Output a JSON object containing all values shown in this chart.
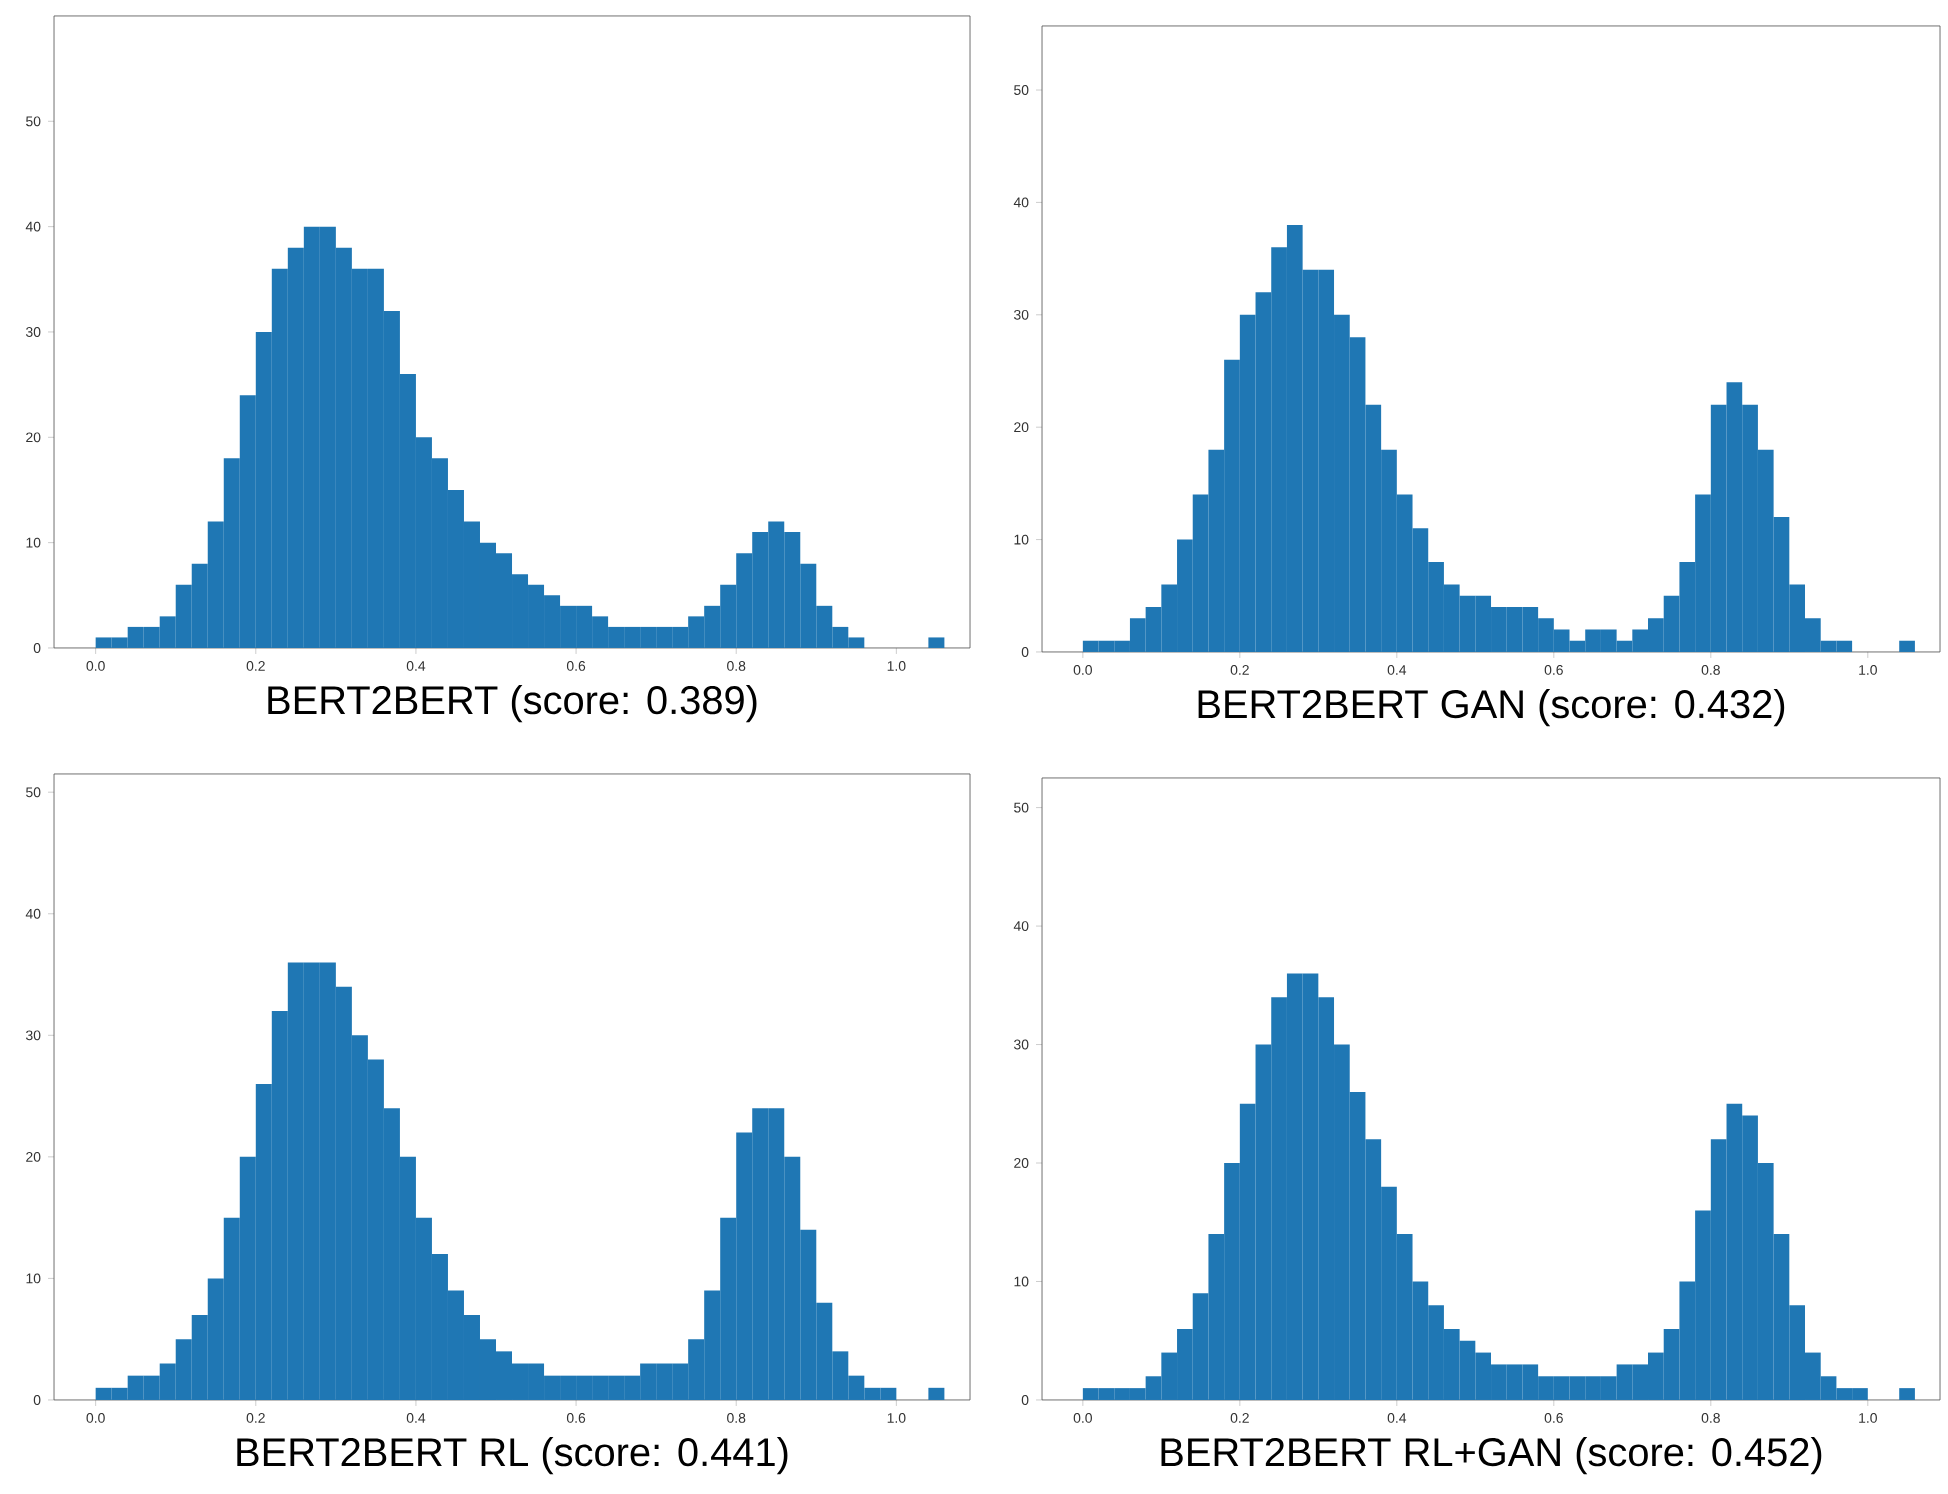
{
  "chart_data": [
    {
      "type": "histogram",
      "title": "BERT2BERT (score: 0.389)",
      "color": "#1f77b4",
      "xlim": [
        -0.052,
        1.092
      ],
      "ylim": [
        0,
        60
      ],
      "xticks": [
        {
          "value": 0,
          "label": "0.0"
        },
        {
          "value": 0.2,
          "label": "0.2"
        },
        {
          "value": 0.4,
          "label": "0.4"
        },
        {
          "value": 0.6,
          "label": "0.6"
        },
        {
          "value": 0.8,
          "label": "0.8"
        },
        {
          "value": 1,
          "label": "1.0"
        }
      ],
      "yticks": [
        0,
        10,
        20,
        30,
        40,
        50
      ],
      "bins": [
        0,
        0.02,
        0.04,
        0.06,
        0.08,
        0.1,
        0.12,
        0.14,
        0.16,
        0.18,
        0.2,
        0.22,
        0.24,
        0.26,
        0.28,
        0.3,
        0.32,
        0.34,
        0.36,
        0.38,
        0.4,
        0.42,
        0.44,
        0.46,
        0.48,
        0.5,
        0.52,
        0.54,
        0.56,
        0.58,
        0.6,
        0.62,
        0.64,
        0.66,
        0.68,
        0.7,
        0.72,
        0.74,
        0.76,
        0.78,
        0.8,
        0.82,
        0.84,
        0.86,
        0.88,
        0.9,
        0.92,
        0.94,
        0.96,
        0.98,
        1.0,
        1.02,
        1.04,
        1.06
      ],
      "values": [
        1,
        1,
        2,
        2,
        3,
        6,
        8,
        12,
        18,
        24,
        30,
        36,
        38,
        40,
        40,
        38,
        36,
        36,
        32,
        26,
        20,
        18,
        15,
        12,
        10,
        9,
        7,
        6,
        5,
        4,
        4,
        3,
        2,
        2,
        2,
        2,
        2,
        3,
        4,
        6,
        9,
        11,
        12,
        11,
        8,
        4,
        2,
        1,
        0,
        0,
        0,
        0,
        1
      ]
    },
    {
      "type": "histogram",
      "title": "BERT2BERT GAN (score: 0.432)",
      "color": "#1f77b4",
      "xlim": [
        -0.052,
        1.092
      ],
      "ylim": [
        0,
        55.7
      ],
      "xticks": [
        {
          "value": 0,
          "label": "0.0"
        },
        {
          "value": 0.2,
          "label": "0.2"
        },
        {
          "value": 0.4,
          "label": "0.4"
        },
        {
          "value": 0.6,
          "label": "0.6"
        },
        {
          "value": 0.8,
          "label": "0.8"
        },
        {
          "value": 1,
          "label": "1.0"
        }
      ],
      "yticks": [
        0,
        10,
        20,
        30,
        40,
        50
      ],
      "bins": [
        0,
        0.02,
        0.04,
        0.06,
        0.08,
        0.1,
        0.12,
        0.14,
        0.16,
        0.18,
        0.2,
        0.22,
        0.24,
        0.26,
        0.28,
        0.3,
        0.32,
        0.34,
        0.36,
        0.38,
        0.4,
        0.42,
        0.44,
        0.46,
        0.48,
        0.5,
        0.52,
        0.54,
        0.56,
        0.58,
        0.6,
        0.62,
        0.64,
        0.66,
        0.68,
        0.7,
        0.72,
        0.74,
        0.76,
        0.78,
        0.8,
        0.82,
        0.84,
        0.86,
        0.88,
        0.9,
        0.92,
        0.94,
        0.96,
        0.98,
        1.0,
        1.02,
        1.04,
        1.06
      ],
      "values": [
        1,
        1,
        1,
        3,
        4,
        6,
        10,
        14,
        18,
        26,
        30,
        32,
        36,
        38,
        34,
        34,
        30,
        28,
        22,
        18,
        14,
        11,
        8,
        6,
        5,
        5,
        4,
        4,
        4,
        3,
        2,
        1,
        2,
        2,
        1,
        2,
        3,
        5,
        8,
        14,
        22,
        24,
        22,
        18,
        12,
        6,
        3,
        1,
        1,
        0,
        0,
        0,
        1
      ]
    },
    {
      "type": "histogram",
      "title": "BERT2BERT RL (score: 0.441)",
      "color": "#1f77b4",
      "xlim": [
        -0.052,
        1.092
      ],
      "ylim": [
        0,
        51.5
      ],
      "xticks": [
        {
          "value": 0,
          "label": "0.0"
        },
        {
          "value": 0.2,
          "label": "0.2"
        },
        {
          "value": 0.4,
          "label": "0.4"
        },
        {
          "value": 0.6,
          "label": "0.6"
        },
        {
          "value": 0.8,
          "label": "0.8"
        },
        {
          "value": 1,
          "label": "1.0"
        }
      ],
      "yticks": [
        0,
        10,
        20,
        30,
        40,
        50
      ],
      "bins": [
        0,
        0.02,
        0.04,
        0.06,
        0.08,
        0.1,
        0.12,
        0.14,
        0.16,
        0.18,
        0.2,
        0.22,
        0.24,
        0.26,
        0.28,
        0.3,
        0.32,
        0.34,
        0.36,
        0.38,
        0.4,
        0.42,
        0.44,
        0.46,
        0.48,
        0.5,
        0.52,
        0.54,
        0.56,
        0.58,
        0.6,
        0.62,
        0.64,
        0.66,
        0.68,
        0.7,
        0.72,
        0.74,
        0.76,
        0.78,
        0.8,
        0.82,
        0.84,
        0.86,
        0.88,
        0.9,
        0.92,
        0.94,
        0.96,
        0.98,
        1.0,
        1.02,
        1.04,
        1.06
      ],
      "values": [
        1,
        1,
        2,
        2,
        3,
        5,
        7,
        10,
        15,
        20,
        26,
        32,
        36,
        36,
        36,
        34,
        30,
        28,
        24,
        20,
        15,
        12,
        9,
        7,
        5,
        4,
        3,
        3,
        2,
        2,
        2,
        2,
        2,
        2,
        3,
        3,
        3,
        5,
        9,
        15,
        22,
        24,
        24,
        20,
        14,
        8,
        4,
        2,
        1,
        1,
        0,
        0,
        1
      ]
    },
    {
      "type": "histogram",
      "title": "BERT2BERT RL+GAN (score: 0.452)",
      "color": "#1f77b4",
      "xlim": [
        -0.052,
        1.092
      ],
      "ylim": [
        0,
        52.5
      ],
      "xticks": [
        {
          "value": 0,
          "label": "0.0"
        },
        {
          "value": 0.2,
          "label": "0.2"
        },
        {
          "value": 0.4,
          "label": "0.4"
        },
        {
          "value": 0.6,
          "label": "0.6"
        },
        {
          "value": 0.8,
          "label": "0.8"
        },
        {
          "value": 1,
          "label": "1.0"
        }
      ],
      "yticks": [
        0,
        10,
        20,
        30,
        40,
        50
      ],
      "bins": [
        0,
        0.02,
        0.04,
        0.06,
        0.08,
        0.1,
        0.12,
        0.14,
        0.16,
        0.18,
        0.2,
        0.22,
        0.24,
        0.26,
        0.28,
        0.3,
        0.32,
        0.34,
        0.36,
        0.38,
        0.4,
        0.42,
        0.44,
        0.46,
        0.48,
        0.5,
        0.52,
        0.54,
        0.56,
        0.58,
        0.6,
        0.62,
        0.64,
        0.66,
        0.68,
        0.7,
        0.72,
        0.74,
        0.76,
        0.78,
        0.8,
        0.82,
        0.84,
        0.86,
        0.88,
        0.9,
        0.92,
        0.94,
        0.96,
        0.98,
        1.0,
        1.02,
        1.04,
        1.06
      ],
      "values": [
        1,
        1,
        1,
        1,
        2,
        4,
        6,
        9,
        14,
        20,
        25,
        30,
        34,
        36,
        36,
        34,
        30,
        26,
        22,
        18,
        14,
        10,
        8,
        6,
        5,
        4,
        3,
        3,
        3,
        2,
        2,
        2,
        2,
        2,
        3,
        3,
        4,
        6,
        10,
        16,
        22,
        25,
        24,
        20,
        14,
        8,
        4,
        2,
        1,
        1,
        0,
        0,
        1
      ]
    }
  ]
}
